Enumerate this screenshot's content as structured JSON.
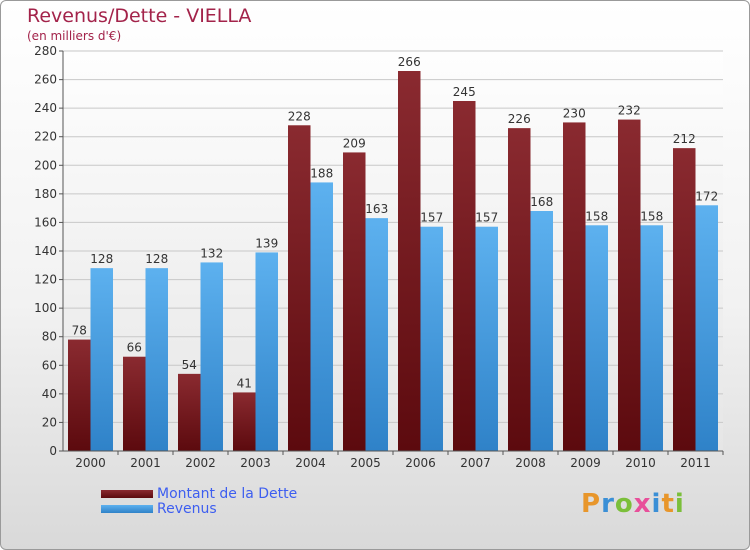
{
  "chart_data": {
    "type": "bar",
    "title": "Revenus/Dette - VIELLA",
    "subtitle": "(en milliers d'€)",
    "categories": [
      "2000",
      "2001",
      "2002",
      "2003",
      "2004",
      "2005",
      "2006",
      "2007",
      "2008",
      "2009",
      "2010",
      "2011"
    ],
    "series": [
      {
        "name": "Montant de la Dette",
        "values": [
          78,
          66,
          54,
          41,
          228,
          209,
          266,
          245,
          226,
          230,
          232,
          212
        ],
        "color": "#7a1a1e"
      },
      {
        "name": "Revenus",
        "values": [
          128,
          128,
          132,
          139,
          188,
          163,
          157,
          157,
          168,
          158,
          158,
          172
        ],
        "color": "#4aa3e6"
      }
    ],
    "ylim": [
      0,
      280
    ],
    "yticks": [
      0,
      20,
      40,
      60,
      80,
      100,
      120,
      140,
      160,
      180,
      200,
      220,
      240,
      260,
      280
    ],
    "grid": true,
    "legend_position": "bottom-left"
  },
  "logo": {
    "text": "Proxiti",
    "letter_colors": [
      "#e8962b",
      "#3a8fd6",
      "#7bbf3a",
      "#e84f9a",
      "#3a8fd6",
      "#e8962b",
      "#7bbf3a"
    ]
  }
}
